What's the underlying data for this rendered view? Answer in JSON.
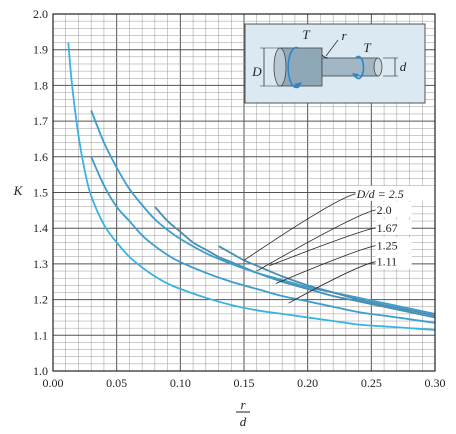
{
  "chart_data": {
    "type": "line",
    "xlabel_num": "r",
    "xlabel_den": "d",
    "ylabel": "K",
    "xlim": [
      0.0,
      0.3
    ],
    "ylim": [
      1.0,
      2.0
    ],
    "xticks": [
      "0.00",
      "0.05",
      "0.10",
      "0.15",
      "0.20",
      "0.25",
      "0.30"
    ],
    "yticks": [
      "1.0",
      "1.1",
      "1.2",
      "1.3",
      "1.4",
      "1.5",
      "1.6",
      "1.7",
      "1.8",
      "1.9",
      "2.0"
    ],
    "grid": true,
    "series": [
      {
        "name": "D/d = 2.5",
        "color": "#4a8fb0",
        "x": [
          0.08,
          0.09,
          0.1,
          0.11,
          0.12,
          0.13,
          0.14,
          0.15,
          0.16,
          0.18,
          0.2,
          0.22,
          0.24,
          0.26,
          0.28,
          0.3
        ],
        "y": [
          1.46,
          1.42,
          1.39,
          1.36,
          1.34,
          1.32,
          1.305,
          1.29,
          1.275,
          1.25,
          1.23,
          1.21,
          1.195,
          1.18,
          1.165,
          1.15
        ]
      },
      {
        "name": "2.0",
        "color": "#3b9ed0",
        "x": [
          0.03,
          0.04,
          0.05,
          0.06,
          0.07,
          0.08,
          0.09,
          0.1,
          0.12,
          0.14,
          0.16,
          0.18,
          0.2,
          0.22,
          0.24,
          0.26,
          0.28,
          0.3
        ],
        "y": [
          1.73,
          1.64,
          1.57,
          1.51,
          1.465,
          1.425,
          1.395,
          1.37,
          1.33,
          1.3,
          1.275,
          1.255,
          1.235,
          1.22,
          1.205,
          1.19,
          1.175,
          1.16
        ]
      },
      {
        "name": "1.67",
        "color": "#4a8fb0",
        "x": [
          0.13,
          0.14,
          0.15,
          0.16,
          0.18,
          0.2,
          0.22,
          0.24,
          0.26,
          0.28,
          0.3
        ],
        "y": [
          1.35,
          1.33,
          1.31,
          1.295,
          1.265,
          1.24,
          1.22,
          1.2,
          1.185,
          1.17,
          1.155
        ]
      },
      {
        "name": "1.25",
        "color": "#3b9ed0",
        "x": [
          0.03,
          0.04,
          0.05,
          0.06,
          0.07,
          0.08,
          0.09,
          0.1,
          0.12,
          0.14,
          0.16,
          0.18,
          0.2,
          0.22,
          0.24,
          0.26,
          0.28,
          0.3
        ],
        "y": [
          1.6,
          1.52,
          1.46,
          1.42,
          1.38,
          1.35,
          1.325,
          1.305,
          1.275,
          1.25,
          1.23,
          1.21,
          1.195,
          1.18,
          1.165,
          1.155,
          1.145,
          1.135
        ]
      },
      {
        "name": "1.11",
        "color": "#3bb3e0",
        "x": [
          0.012,
          0.015,
          0.02,
          0.025,
          0.03,
          0.04,
          0.05,
          0.06,
          0.07,
          0.08,
          0.09,
          0.1,
          0.12,
          0.14,
          0.16,
          0.18,
          0.2,
          0.22,
          0.24,
          0.26,
          0.28,
          0.3
        ],
        "y": [
          1.92,
          1.8,
          1.66,
          1.56,
          1.49,
          1.41,
          1.36,
          1.32,
          1.29,
          1.265,
          1.245,
          1.23,
          1.205,
          1.185,
          1.17,
          1.16,
          1.15,
          1.14,
          1.13,
          1.125,
          1.12,
          1.115
        ]
      }
    ],
    "legend_labels": [
      "D/d = 2.5",
      "2.0",
      "1.67",
      "1.25",
      "1.11"
    ]
  },
  "inset": {
    "label_T_left": "T",
    "label_r": "r",
    "label_T_right": "T",
    "label_D": "D",
    "label_d": "d"
  }
}
